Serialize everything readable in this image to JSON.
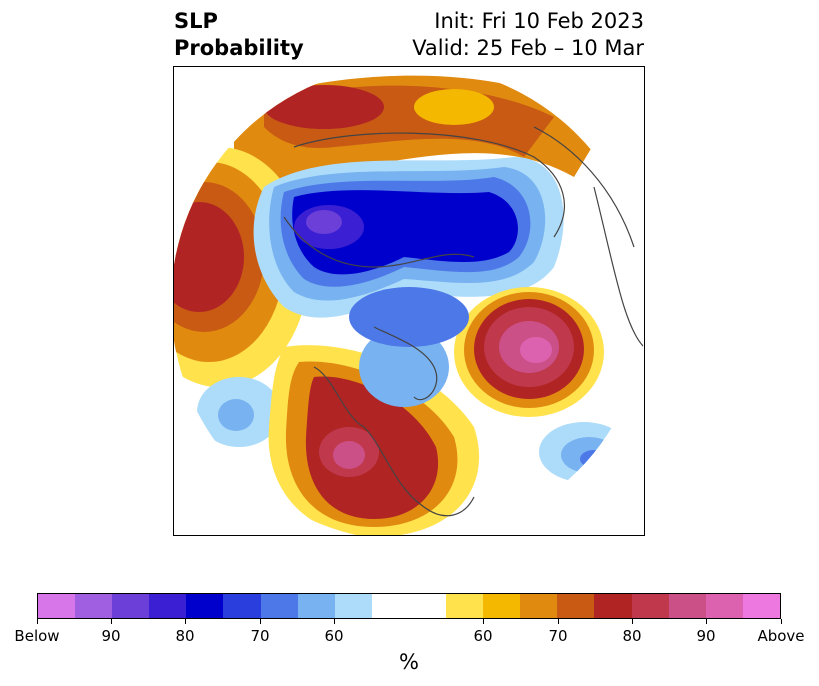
{
  "title": {
    "left_line1": "SLP",
    "left_line2": "Probability",
    "right_line1": "Init: Fri 10 Feb 2023",
    "right_line2": "Valid: 25 Feb – 10 Mar"
  },
  "colorbar": {
    "colors": [
      "#d676e8",
      "#a05ee0",
      "#6c3fd8",
      "#3a1fd3",
      "#0000cc",
      "#2a3ede",
      "#4d78e8",
      "#78b2f0",
      "#acdcfa",
      "#ffffff",
      "#ffe24c",
      "#f4b800",
      "#e08a10",
      "#c85a14",
      "#b02424",
      "#c0384c",
      "#cc5088",
      "#dc62b0",
      "#ec78e0"
    ],
    "labels": [
      "Below",
      "90",
      "80",
      "70",
      "60",
      "60",
      "70",
      "80",
      "90",
      "Above"
    ],
    "unit": "%"
  }
}
